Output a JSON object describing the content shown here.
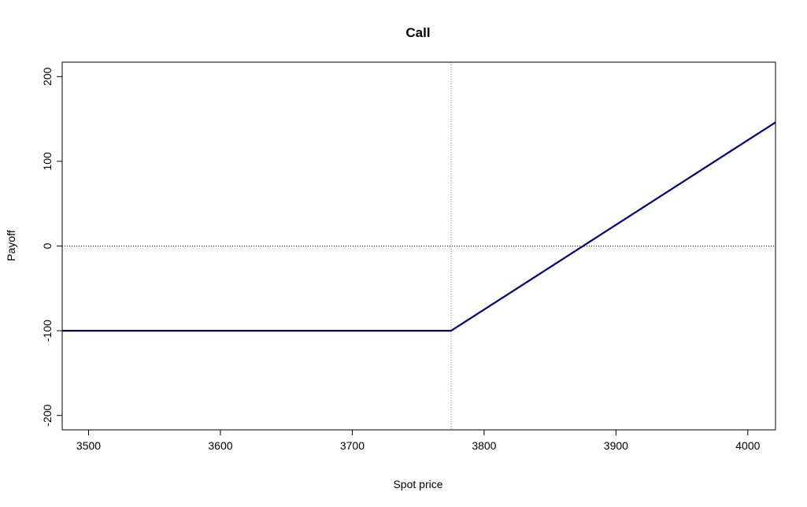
{
  "chart_data": {
    "type": "line",
    "title": "Call",
    "xlabel": "Spot price",
    "ylabel": "Payoff",
    "xlim": [
      3480,
      4021
    ],
    "ylim": [
      -217,
      217
    ],
    "x_ticks": [
      3500,
      3600,
      3700,
      3800,
      3900,
      4000
    ],
    "y_ticks": [
      -200,
      -100,
      0,
      100,
      200
    ],
    "x_tick_labels": [
      "3500",
      "3600",
      "3700",
      "3800",
      "3900",
      "4000"
    ],
    "y_tick_labels": [
      "-200",
      "-100",
      "0",
      "100",
      "200"
    ],
    "series": [
      {
        "color": "#000080",
        "x": [
          3480,
          3775,
          4021
        ],
        "y": [
          -100,
          -100,
          146
        ]
      }
    ],
    "reference_lines": {
      "horizontal_y": 0,
      "vertical_x": 3775
    },
    "grid": false,
    "legend": "none"
  }
}
